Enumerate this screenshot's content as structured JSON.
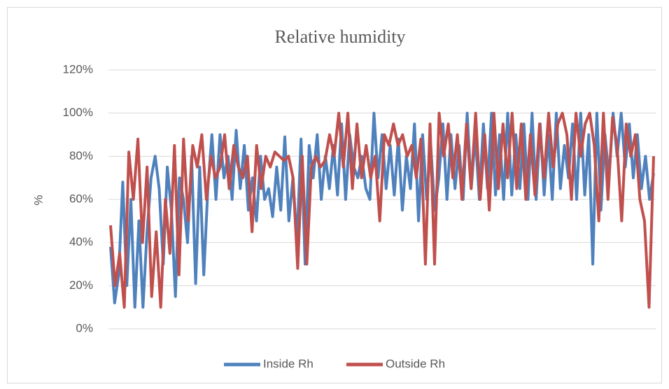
{
  "chart_data": {
    "type": "line",
    "title": "Relative humidity",
    "ylabel": "%",
    "ylim": [
      0,
      120
    ],
    "yticks": [
      {
        "value": 0,
        "label": "0%"
      },
      {
        "value": 20,
        "label": "20%"
      },
      {
        "value": 40,
        "label": "40%"
      },
      {
        "value": 60,
        "label": "60%"
      },
      {
        "value": 80,
        "label": "80%"
      },
      {
        "value": 100,
        "label": "100%"
      },
      {
        "value": 120,
        "label": "120%"
      }
    ],
    "grid": true,
    "legend": "bottom",
    "series": [
      {
        "name": "Inside Rh",
        "color": "#4f81bd",
        "values": [
          38,
          12,
          25,
          68,
          20,
          60,
          10,
          50,
          10,
          45,
          70,
          80,
          65,
          30,
          75,
          55,
          15,
          70,
          60,
          40,
          80,
          21,
          75,
          25,
          65,
          90,
          60,
          90,
          70,
          80,
          60,
          92,
          65,
          85,
          55,
          70,
          50,
          80,
          60,
          65,
          52,
          75,
          55,
          89,
          50,
          70,
          40,
          88,
          30,
          85,
          70,
          90,
          60,
          80,
          65,
          85,
          62,
          95,
          60,
          90,
          75,
          70,
          80,
          65,
          60,
          100,
          70,
          90,
          65,
          85,
          62,
          88,
          55,
          80,
          65,
          95,
          50,
          90,
          60,
          85,
          55,
          70,
          95,
          60,
          90,
          65,
          85,
          60,
          100,
          65,
          90,
          60,
          95,
          65,
          100,
          62,
          90,
          60,
          100,
          62,
          90,
          65,
          95,
          60,
          100,
          60,
          95,
          62,
          90,
          60,
          100,
          65,
          85,
          70,
          95,
          60,
          100,
          62,
          90,
          30,
          100,
          55,
          90,
          70,
          100,
          80,
          100,
          75,
          95,
          70,
          90,
          65,
          80,
          60,
          72
        ]
      },
      {
        "name": "Outside Rh",
        "color": "#c0504d",
        "values": [
          48,
          20,
          35,
          10,
          82,
          60,
          88,
          40,
          75,
          15,
          45,
          10,
          60,
          35,
          85,
          25,
          88,
          50,
          85,
          75,
          90,
          60,
          80,
          70,
          75,
          90,
          65,
          85,
          75,
          70,
          80,
          45,
          85,
          65,
          80,
          75,
          82,
          80,
          78,
          80,
          70,
          28,
          80,
          30,
          75,
          80,
          75,
          78,
          90,
          80,
          100,
          75,
          100,
          65,
          95,
          70,
          85,
          70,
          80,
          50,
          90,
          85,
          95,
          85,
          90,
          80,
          85,
          70,
          88,
          30,
          95,
          30,
          100,
          80,
          95,
          70,
          90,
          60,
          95,
          65,
          100,
          60,
          90,
          55,
          100,
          65,
          95,
          70,
          100,
          65,
          95,
          60,
          90,
          62,
          95,
          70,
          100,
          75,
          95,
          100,
          90,
          60,
          100,
          80,
          95,
          100,
          85,
          50,
          100,
          60,
          98,
          85,
          50,
          95,
          80,
          90,
          60,
          50,
          10,
          80
        ]
      }
    ]
  }
}
